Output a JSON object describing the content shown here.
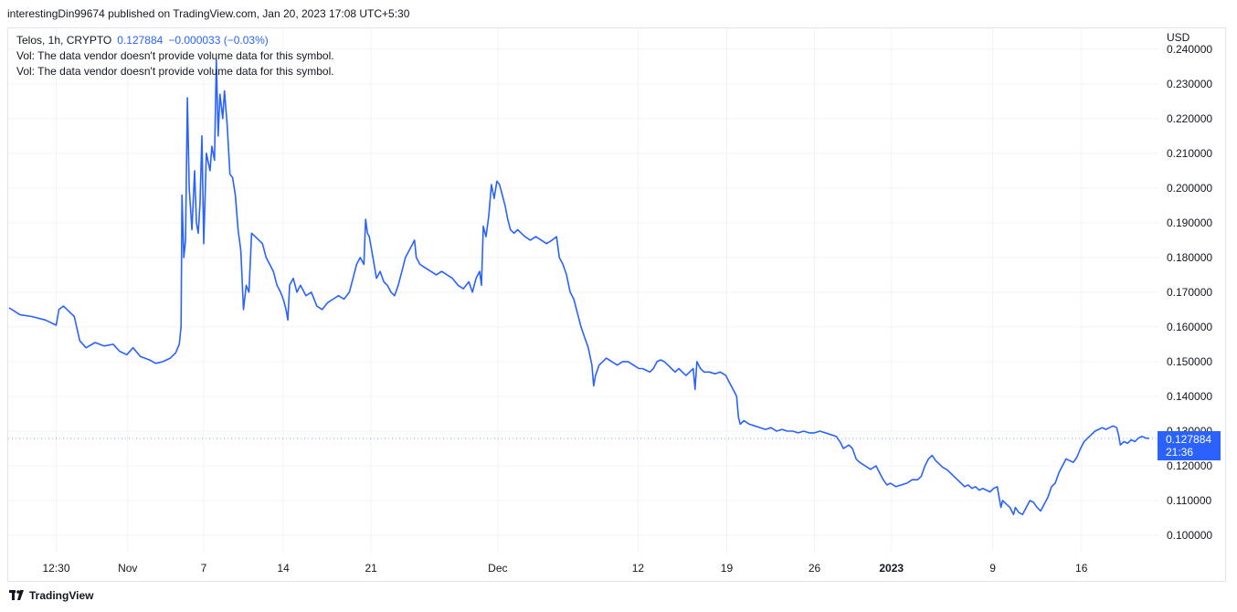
{
  "header": {
    "published": "interestingDin99674 published on TradingView.com, Jan 20, 2023 17:08 UTC+5:30"
  },
  "legend": {
    "symbol": "Telos, 1h, CRYPTO",
    "last": "0.127884",
    "change": "−0.000033 (−0.03%)",
    "vol_line_1": "Vol: The data vendor doesn't provide volume data for this symbol.",
    "vol_line_2": "Vol: The data vendor doesn't provide volume data for this symbol."
  },
  "footer": {
    "brand": "TradingView"
  },
  "chart_data": {
    "type": "line",
    "title": "",
    "currency_label": "USD",
    "xlabel": "",
    "ylabel": "",
    "ylim": [
      0.095,
      0.246
    ],
    "y_ticks": [
      "0.240000",
      "0.230000",
      "0.220000",
      "0.210000",
      "0.200000",
      "0.190000",
      "0.180000",
      "0.170000",
      "0.160000",
      "0.150000",
      "0.140000",
      "0.130000",
      "0.120000",
      "0.110000",
      "0.100000"
    ],
    "x_range": [
      0,
      1260
    ],
    "x_ticks": [
      {
        "label": "12:30",
        "x": 52,
        "bold": false
      },
      {
        "label": "Nov",
        "x": 131,
        "bold": false
      },
      {
        "label": "7",
        "x": 215,
        "bold": false
      },
      {
        "label": "14",
        "x": 303,
        "bold": false
      },
      {
        "label": "21",
        "x": 400,
        "bold": false
      },
      {
        "label": "Dec",
        "x": 540,
        "bold": false
      },
      {
        "label": "12",
        "x": 695,
        "bold": false
      },
      {
        "label": "19",
        "x": 793,
        "bold": false
      },
      {
        "label": "26",
        "x": 890,
        "bold": false
      },
      {
        "label": "2023",
        "x": 975,
        "bold": true
      },
      {
        "label": "9",
        "x": 1087,
        "bold": false
      },
      {
        "label": "16",
        "x": 1185,
        "bold": false
      }
    ],
    "grid": true,
    "series": [
      {
        "color": "#2962ff",
        "points": [
          [
            0,
            0.1655
          ],
          [
            12,
            0.1635
          ],
          [
            25,
            0.163
          ],
          [
            40,
            0.162
          ],
          [
            52,
            0.1605
          ],
          [
            55,
            0.165
          ],
          [
            60,
            0.166
          ],
          [
            66,
            0.1645
          ],
          [
            72,
            0.163
          ],
          [
            78,
            0.156
          ],
          [
            85,
            0.154
          ],
          [
            95,
            0.1555
          ],
          [
            105,
            0.1545
          ],
          [
            115,
            0.155
          ],
          [
            122,
            0.153
          ],
          [
            130,
            0.152
          ],
          [
            137,
            0.154
          ],
          [
            145,
            0.1515
          ],
          [
            155,
            0.1505
          ],
          [
            162,
            0.1495
          ],
          [
            170,
            0.15
          ],
          [
            178,
            0.151
          ],
          [
            184,
            0.1525
          ],
          [
            188,
            0.155
          ],
          [
            190,
            0.16
          ],
          [
            191,
            0.198
          ],
          [
            193,
            0.18
          ],
          [
            195,
            0.185
          ],
          [
            197,
            0.226
          ],
          [
            199,
            0.2
          ],
          [
            202,
            0.188
          ],
          [
            205,
            0.205
          ],
          [
            207,
            0.19
          ],
          [
            209,
            0.187
          ],
          [
            211,
            0.196
          ],
          [
            213,
            0.215
          ],
          [
            215,
            0.184
          ],
          [
            218,
            0.21
          ],
          [
            222,
            0.205
          ],
          [
            224,
            0.212
          ],
          [
            227,
            0.208
          ],
          [
            229,
            0.237
          ],
          [
            231,
            0.215
          ],
          [
            233,
            0.227
          ],
          [
            236,
            0.22
          ],
          [
            238,
            0.228
          ],
          [
            241,
            0.218
          ],
          [
            244,
            0.204
          ],
          [
            247,
            0.203
          ],
          [
            250,
            0.198
          ],
          [
            253,
            0.188
          ],
          [
            256,
            0.182
          ],
          [
            259,
            0.165
          ],
          [
            262,
            0.172
          ],
          [
            265,
            0.17
          ],
          [
            268,
            0.187
          ],
          [
            272,
            0.186
          ],
          [
            276,
            0.185
          ],
          [
            280,
            0.184
          ],
          [
            284,
            0.18
          ],
          [
            288,
            0.178
          ],
          [
            292,
            0.176
          ],
          [
            296,
            0.172
          ],
          [
            300,
            0.17
          ],
          [
            303,
            0.168
          ],
          [
            306,
            0.165
          ],
          [
            308,
            0.162
          ],
          [
            310,
            0.172
          ],
          [
            314,
            0.174
          ],
          [
            318,
            0.17
          ],
          [
            322,
            0.172
          ],
          [
            328,
            0.169
          ],
          [
            334,
            0.17
          ],
          [
            340,
            0.166
          ],
          [
            346,
            0.165
          ],
          [
            352,
            0.167
          ],
          [
            358,
            0.168
          ],
          [
            364,
            0.169
          ],
          [
            370,
            0.168
          ],
          [
            376,
            0.17
          ],
          [
            380,
            0.174
          ],
          [
            384,
            0.178
          ],
          [
            388,
            0.18
          ],
          [
            392,
            0.178
          ],
          [
            394,
            0.191
          ],
          [
            396,
            0.187
          ],
          [
            398,
            0.186
          ],
          [
            402,
            0.18
          ],
          [
            406,
            0.174
          ],
          [
            410,
            0.176
          ],
          [
            414,
            0.173
          ],
          [
            418,
            0.172
          ],
          [
            422,
            0.17
          ],
          [
            426,
            0.169
          ],
          [
            430,
            0.172
          ],
          [
            434,
            0.176
          ],
          [
            438,
            0.18
          ],
          [
            442,
            0.182
          ],
          [
            446,
            0.184
          ],
          [
            448,
            0.185
          ],
          [
            450,
            0.18
          ],
          [
            454,
            0.178
          ],
          [
            460,
            0.177
          ],
          [
            466,
            0.176
          ],
          [
            472,
            0.175
          ],
          [
            478,
            0.176
          ],
          [
            484,
            0.175
          ],
          [
            490,
            0.174
          ],
          [
            496,
            0.172
          ],
          [
            502,
            0.171
          ],
          [
            508,
            0.173
          ],
          [
            512,
            0.17
          ],
          [
            516,
            0.174
          ],
          [
            520,
            0.176
          ],
          [
            522,
            0.172
          ],
          [
            524,
            0.189
          ],
          [
            527,
            0.186
          ],
          [
            530,
            0.192
          ],
          [
            533,
            0.201
          ],
          [
            536,
            0.197
          ],
          [
            539,
            0.202
          ],
          [
            542,
            0.201
          ],
          [
            545,
            0.198
          ],
          [
            548,
            0.195
          ],
          [
            551,
            0.191
          ],
          [
            554,
            0.188
          ],
          [
            558,
            0.187
          ],
          [
            562,
            0.188
          ],
          [
            566,
            0.187
          ],
          [
            570,
            0.186
          ],
          [
            576,
            0.185
          ],
          [
            582,
            0.186
          ],
          [
            588,
            0.185
          ],
          [
            594,
            0.184
          ],
          [
            600,
            0.185
          ],
          [
            605,
            0.186
          ],
          [
            608,
            0.18
          ],
          [
            612,
            0.178
          ],
          [
            616,
            0.175
          ],
          [
            620,
            0.17
          ],
          [
            624,
            0.168
          ],
          [
            628,
            0.164
          ],
          [
            632,
            0.16
          ],
          [
            636,
            0.157
          ],
          [
            640,
            0.154
          ],
          [
            644,
            0.149
          ],
          [
            646,
            0.143
          ],
          [
            648,
            0.146
          ],
          [
            652,
            0.149
          ],
          [
            656,
            0.15
          ],
          [
            660,
            0.151
          ],
          [
            666,
            0.15
          ],
          [
            672,
            0.149
          ],
          [
            678,
            0.15
          ],
          [
            684,
            0.15
          ],
          [
            690,
            0.149
          ],
          [
            696,
            0.148
          ],
          [
            700,
            0.148
          ],
          [
            704,
            0.1475
          ],
          [
            708,
            0.147
          ],
          [
            712,
            0.148
          ],
          [
            716,
            0.15
          ],
          [
            720,
            0.1505
          ],
          [
            724,
            0.15
          ],
          [
            728,
            0.149
          ],
          [
            732,
            0.148
          ],
          [
            736,
            0.147
          ],
          [
            740,
            0.148
          ],
          [
            744,
            0.147
          ],
          [
            748,
            0.146
          ],
          [
            752,
            0.147
          ],
          [
            756,
            0.148
          ],
          [
            758,
            0.142
          ],
          [
            760,
            0.15
          ],
          [
            764,
            0.148
          ],
          [
            768,
            0.147
          ],
          [
            774,
            0.147
          ],
          [
            780,
            0.1465
          ],
          [
            786,
            0.147
          ],
          [
            792,
            0.146
          ],
          [
            796,
            0.144
          ],
          [
            800,
            0.142
          ],
          [
            804,
            0.14
          ],
          [
            806,
            0.134
          ],
          [
            808,
            0.132
          ],
          [
            812,
            0.133
          ],
          [
            818,
            0.132
          ],
          [
            824,
            0.1315
          ],
          [
            830,
            0.131
          ],
          [
            836,
            0.1305
          ],
          [
            842,
            0.131
          ],
          [
            848,
            0.13
          ],
          [
            854,
            0.1305
          ],
          [
            860,
            0.13
          ],
          [
            866,
            0.13
          ],
          [
            872,
            0.1295
          ],
          [
            878,
            0.13
          ],
          [
            884,
            0.1295
          ],
          [
            890,
            0.1295
          ],
          [
            896,
            0.13
          ],
          [
            902,
            0.1295
          ],
          [
            908,
            0.129
          ],
          [
            914,
            0.1285
          ],
          [
            918,
            0.127
          ],
          [
            922,
            0.125
          ],
          [
            928,
            0.126
          ],
          [
            932,
            0.125
          ],
          [
            936,
            0.122
          ],
          [
            940,
            0.121
          ],
          [
            946,
            0.12
          ],
          [
            952,
            0.119
          ],
          [
            958,
            0.12
          ],
          [
            962,
            0.118
          ],
          [
            966,
            0.116
          ],
          [
            970,
            0.1145
          ],
          [
            974,
            0.115
          ],
          [
            980,
            0.114
          ],
          [
            986,
            0.1145
          ],
          [
            992,
            0.115
          ],
          [
            998,
            0.116
          ],
          [
            1004,
            0.116
          ],
          [
            1008,
            0.117
          ],
          [
            1012,
            0.12
          ],
          [
            1016,
            0.122
          ],
          [
            1020,
            0.123
          ],
          [
            1024,
            0.1215
          ],
          [
            1028,
            0.1205
          ],
          [
            1032,
            0.1195
          ],
          [
            1036,
            0.119
          ],
          [
            1040,
            0.118
          ],
          [
            1044,
            0.117
          ],
          [
            1048,
            0.116
          ],
          [
            1052,
            0.115
          ],
          [
            1056,
            0.114
          ],
          [
            1060,
            0.1145
          ],
          [
            1064,
            0.1135
          ],
          [
            1068,
            0.114
          ],
          [
            1072,
            0.113
          ],
          [
            1076,
            0.1135
          ],
          [
            1080,
            0.113
          ],
          [
            1084,
            0.1125
          ],
          [
            1088,
            0.1135
          ],
          [
            1092,
            0.114
          ],
          [
            1094,
            0.111
          ],
          [
            1096,
            0.108
          ],
          [
            1098,
            0.11
          ],
          [
            1102,
            0.109
          ],
          [
            1106,
            0.108
          ],
          [
            1110,
            0.106
          ],
          [
            1112,
            0.108
          ],
          [
            1116,
            0.1065
          ],
          [
            1120,
            0.106
          ],
          [
            1124,
            0.108
          ],
          [
            1128,
            0.11
          ],
          [
            1132,
            0.1095
          ],
          [
            1136,
            0.108
          ],
          [
            1140,
            0.107
          ],
          [
            1144,
            0.109
          ],
          [
            1148,
            0.111
          ],
          [
            1152,
            0.114
          ],
          [
            1156,
            0.115
          ],
          [
            1160,
            0.118
          ],
          [
            1164,
            0.12
          ],
          [
            1168,
            0.122
          ],
          [
            1172,
            0.1215
          ],
          [
            1176,
            0.121
          ],
          [
            1180,
            0.1225
          ],
          [
            1184,
            0.125
          ],
          [
            1188,
            0.127
          ],
          [
            1192,
            0.128
          ],
          [
            1196,
            0.129
          ],
          [
            1200,
            0.13
          ],
          [
            1204,
            0.1305
          ],
          [
            1208,
            0.131
          ],
          [
            1212,
            0.1305
          ],
          [
            1216,
            0.131
          ],
          [
            1220,
            0.1315
          ],
          [
            1224,
            0.131
          ],
          [
            1226,
            0.129
          ],
          [
            1228,
            0.126
          ],
          [
            1232,
            0.127
          ],
          [
            1236,
            0.1265
          ],
          [
            1240,
            0.1275
          ],
          [
            1244,
            0.127
          ],
          [
            1248,
            0.128
          ],
          [
            1252,
            0.1285
          ],
          [
            1256,
            0.128
          ],
          [
            1260,
            0.1279
          ]
        ]
      }
    ],
    "last_price": {
      "value": 0.127884,
      "label": "0.127884",
      "countdown": "21:36"
    }
  }
}
